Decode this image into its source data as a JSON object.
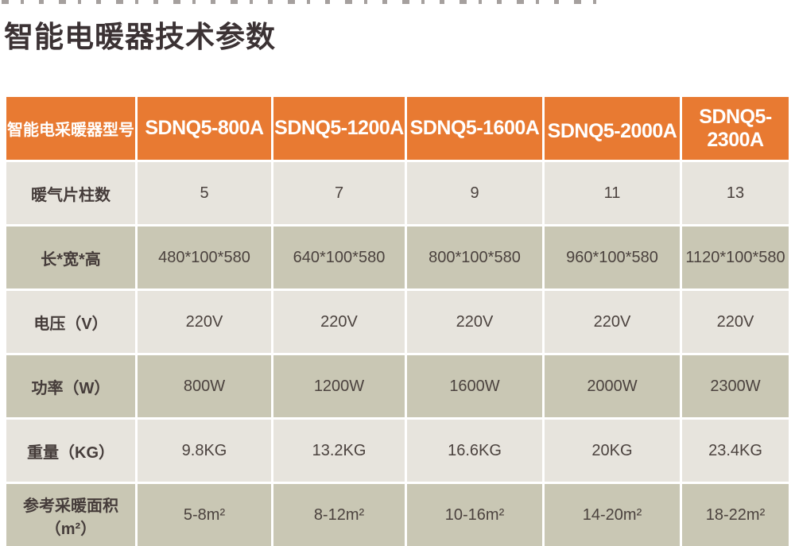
{
  "page": {
    "title": "智能电暖器技术参数"
  },
  "table": {
    "header": {
      "label": "智能电采暖器型号",
      "models": [
        "SDNQ5-800A",
        "SDNQ5-1200A",
        "SDNQ5-1600A",
        "SDNQ5-2000A",
        "SDNQ5-2300A"
      ]
    },
    "rows": [
      {
        "label": "暖气片柱数",
        "values": [
          "5",
          "7",
          "9",
          "11",
          "13"
        ]
      },
      {
        "label": "长*宽*高",
        "values": [
          "480*100*580",
          "640*100*580",
          "800*100*580",
          "960*100*580",
          "1120*100*580"
        ]
      },
      {
        "label": "电压（V）",
        "values": [
          "220V",
          "220V",
          "220V",
          "220V",
          "220V"
        ]
      },
      {
        "label": "功率（W）",
        "values": [
          "800W",
          "1200W",
          "1600W",
          "2000W",
          "2300W"
        ]
      },
      {
        "label": "重量（KG）",
        "values": [
          "9.8KG",
          "13.2KG",
          "16.6KG",
          "20KG",
          "23.4KG"
        ]
      },
      {
        "label": "参考采暖面积（m²）",
        "values": [
          "5-8m²",
          "8-12m²",
          "10-16m²",
          "14-20m²",
          "18-22m²"
        ]
      }
    ]
  },
  "colors": {
    "header_bg": "#e87a32",
    "row_light": "#e7e4dd",
    "row_dark": "#c9c7b4",
    "header_text": "#ffffff",
    "body_text": "#4b423e",
    "title_text": "#3b3234"
  }
}
